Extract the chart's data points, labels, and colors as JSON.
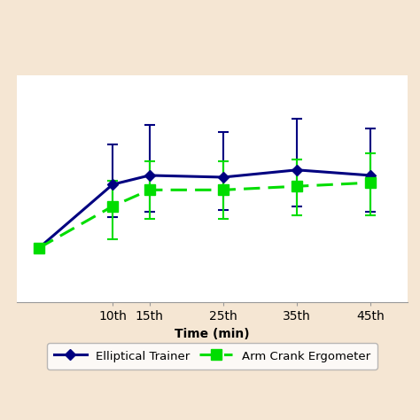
{
  "x_labels": [
    "10th",
    "15th",
    "25th",
    "35th",
    "45th"
  ],
  "x_values": [
    0,
    10,
    15,
    25,
    35,
    45
  ],
  "x_tick_values": [
    10,
    15,
    25,
    35,
    45
  ],
  "elliptical_y": [
    120,
    155,
    160,
    159,
    163,
    160
  ],
  "elliptical_yerr_upper": [
    0,
    22,
    28,
    25,
    28,
    26
  ],
  "elliptical_yerr_lower": [
    0,
    18,
    20,
    18,
    20,
    20
  ],
  "elliptical_color": "#000080",
  "elliptical_label": "Elliptical Trainer",
  "arm_y": [
    120,
    143,
    152,
    152,
    154,
    156
  ],
  "arm_yerr_upper": [
    0,
    14,
    16,
    16,
    15,
    16
  ],
  "arm_yerr_lower": [
    0,
    18,
    16,
    16,
    16,
    18
  ],
  "arm_color": "#00dd00",
  "arm_label": "Arm Crank Ergometer",
  "xlabel": "Time (min)",
  "ylim": [
    90,
    215
  ],
  "xlim": [
    -3,
    50
  ],
  "bg_color": "#ffffff",
  "outer_bg": "#f5e6d3",
  "grid_color": "#bbbbbb",
  "axis_fontsize": 10,
  "legend_fontsize": 9.5
}
